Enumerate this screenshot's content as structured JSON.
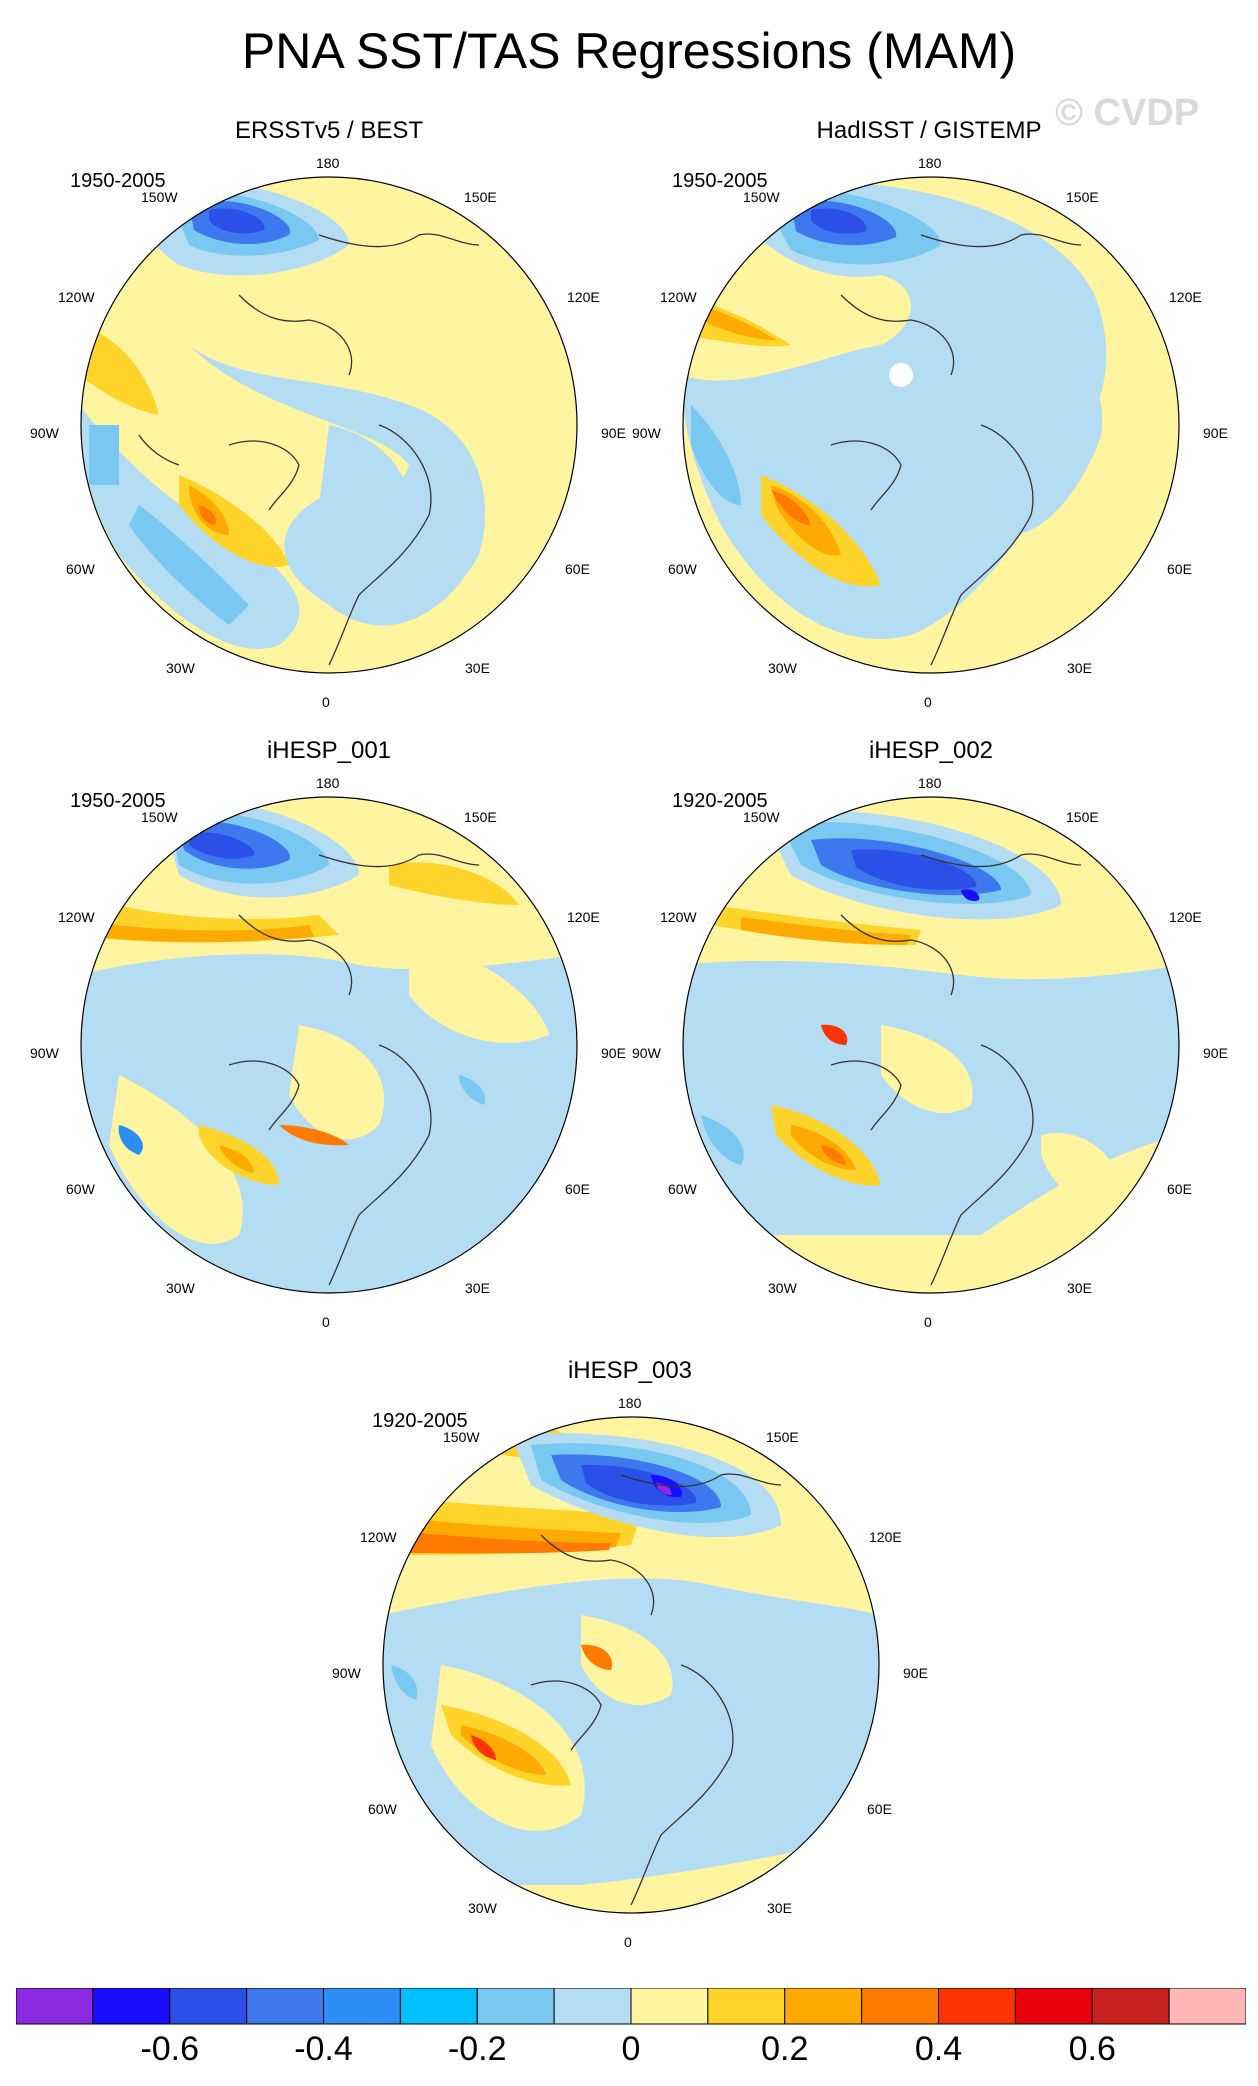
{
  "title": "PNA SST/TAS Regressions (MAM)",
  "watermark": "© CVDP",
  "lon_labels": {
    "top": "180",
    "bottom": "0",
    "upper_left": "150W",
    "upper_right": "150E",
    "mid_upper_left": "120W",
    "mid_upper_right": "120E",
    "left": "90W",
    "right": "90E",
    "mid_lower_left": "60W",
    "mid_lower_right": "60E",
    "lower_left": "30W",
    "lower_right": "30E"
  },
  "panels": [
    {
      "title": "ERSSTv5 / BEST",
      "period": "1950-2005"
    },
    {
      "title": "HadISST / GISTEMP",
      "period": "1950-2005"
    },
    {
      "title": "iHESP_001",
      "period": "1950-2005"
    },
    {
      "title": "iHESP_002",
      "period": "1920-2005"
    },
    {
      "title": "iHESP_003",
      "period": "1920-2005"
    }
  ],
  "colorbar": {
    "colors": [
      "#8a2be2",
      "#1a0dff",
      "#2b50e8",
      "#3d78ee",
      "#2e8ef7",
      "#00bfff",
      "#79c8f2",
      "#b4dcf2",
      "#fff5a0",
      "#ffd42a",
      "#ffaa00",
      "#ff7a00",
      "#ff3300",
      "#e8000b",
      "#c8201e",
      "#ffb6b6"
    ],
    "ticks": [
      {
        "value": -0.6,
        "label": "-0.6"
      },
      {
        "value": -0.4,
        "label": "-0.4"
      },
      {
        "value": -0.2,
        "label": "-0.2"
      },
      {
        "value": 0,
        "label": "0"
      },
      {
        "value": 0.2,
        "label": "0.2"
      },
      {
        "value": 0.4,
        "label": "0.4"
      },
      {
        "value": 0.6,
        "label": "0.6"
      }
    ]
  }
}
